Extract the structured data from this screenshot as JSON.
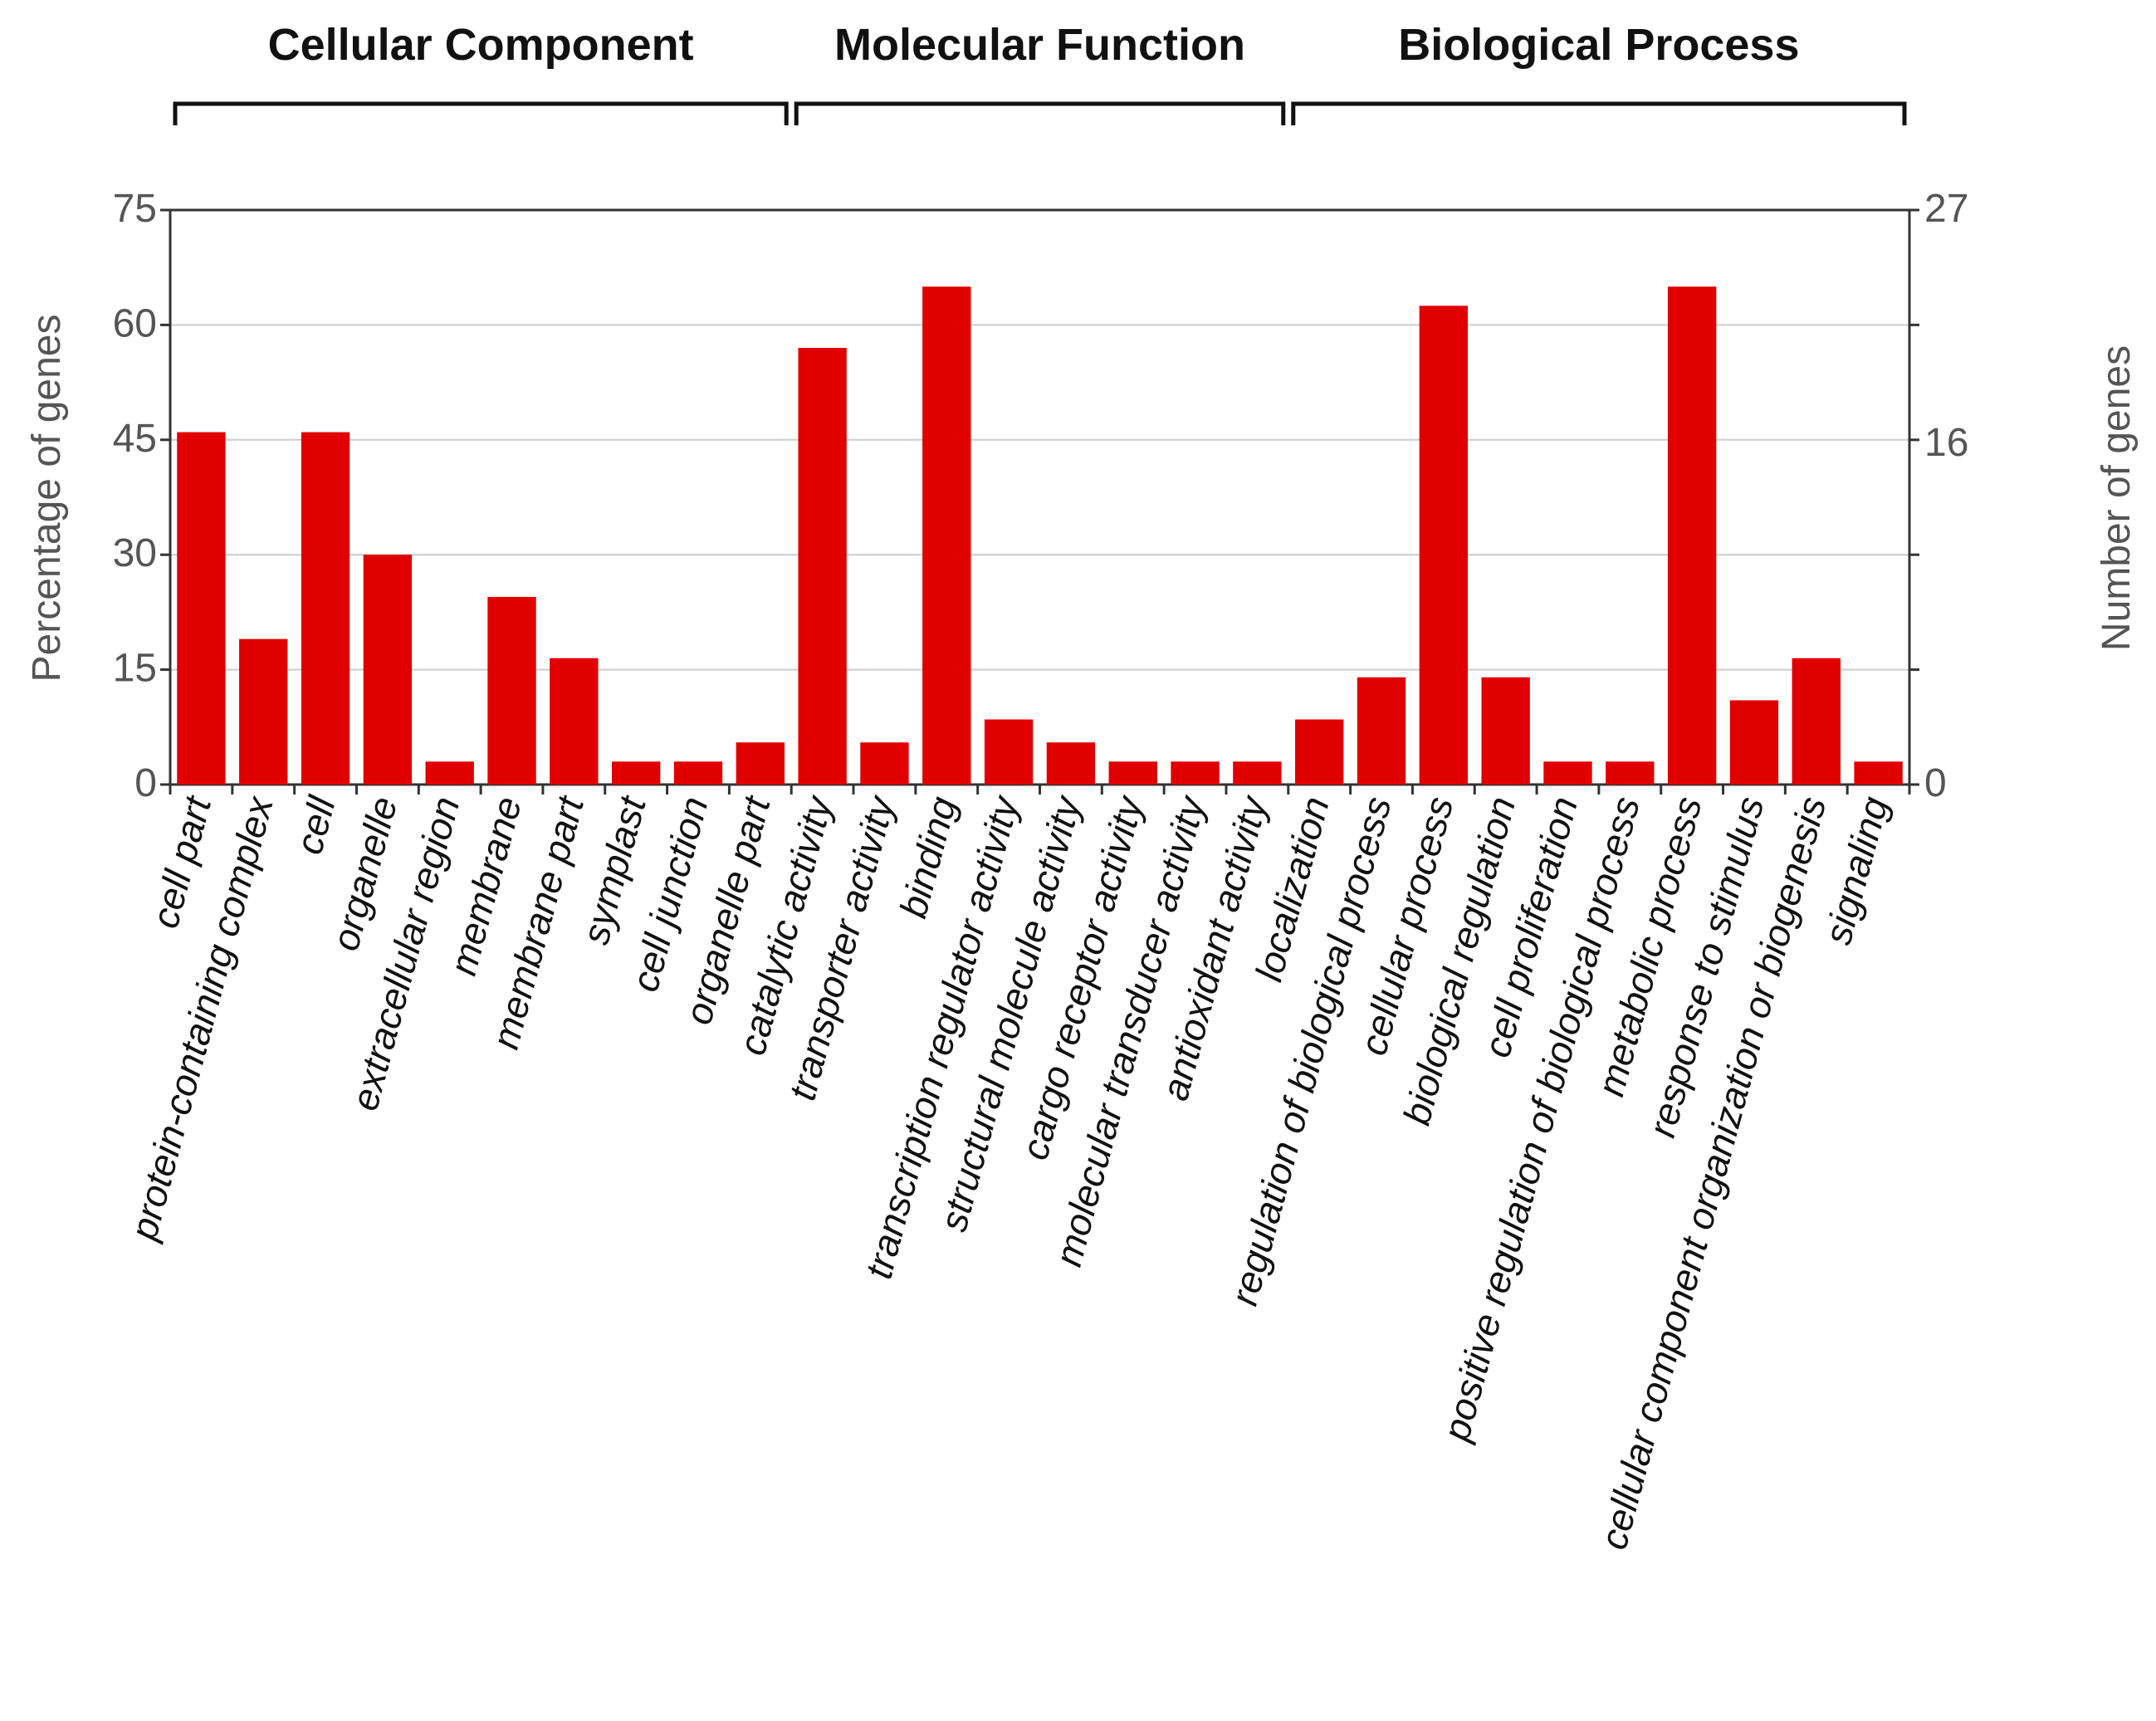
{
  "chart_data": {
    "type": "bar",
    "title": "",
    "groups": [
      {
        "name": "Cellular Component",
        "start": 0,
        "end": 9
      },
      {
        "name": "Molecular Function",
        "start": 10,
        "end": 17
      },
      {
        "name": "Biological Process",
        "start": 18,
        "end": 27
      }
    ],
    "categories": [
      "cell part",
      "protein-containing complex",
      "cell",
      "organelle",
      "extracellular region",
      "membrane",
      "membrane part",
      "symplast",
      "cell junction",
      "organelle part",
      "catalytic activity",
      "transporter activity",
      "binding",
      "transcription regulator activity",
      "structural molecule activity",
      "cargo receptor activity",
      "molecular transducer activity",
      "antioxidant activity",
      "localization",
      "regulation of biological process",
      "cellular process",
      "biological regulation",
      "cell proliferation",
      "positive regulation of biological process",
      "metabolic process",
      "response to stimulus",
      "cellular component organization or biogenesis",
      "signaling"
    ],
    "values": [
      46,
      19,
      46,
      30,
      3,
      24.5,
      16.5,
      3,
      3,
      5.5,
      57,
      5.5,
      65,
      8.5,
      5.5,
      3,
      3,
      3,
      8.5,
      14,
      62.5,
      14,
      3,
      3,
      65,
      11,
      16.5,
      3
    ],
    "ylabel": "Percentage of genes",
    "ylabel_right": "Number of genes",
    "ylim": [
      0,
      75
    ],
    "yticks": [
      "75",
      "60",
      "45",
      "30",
      "15",
      "0"
    ],
    "ylim_right": [
      0,
      27
    ],
    "yticks_right": [
      "27",
      "16",
      "0"
    ],
    "bar_color": "#e00000"
  }
}
